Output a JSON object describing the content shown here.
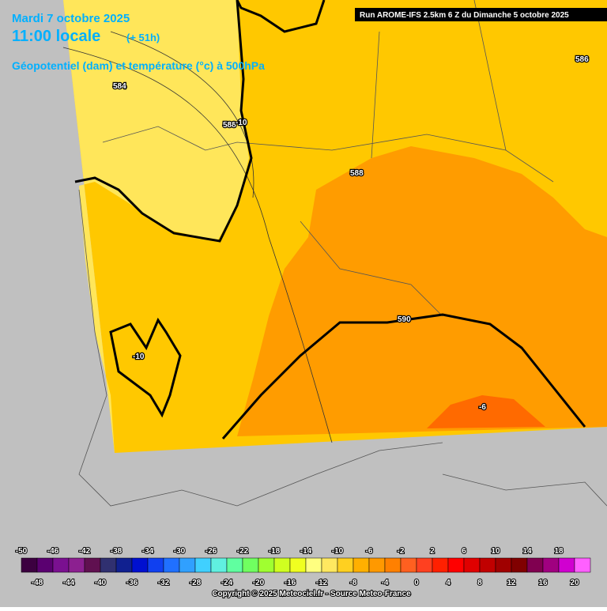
{
  "header": {
    "date": "Mardi 7 octobre 2025",
    "time": "11:00 locale",
    "lead": "(+ 51h)",
    "subtitle": "Géopotentiel (dam) et température (°c) à 500hPa",
    "run_info": "Run AROME-IFS 2.5km 6 Z du Dimanche 5 octobre 2025"
  },
  "contour_labels": [
    "584",
    "588",
    "-10",
    "588",
    "586",
    "590",
    "-10",
    "-6"
  ],
  "colorbar": {
    "colors": [
      "#3c0040",
      "#5a0070",
      "#7a1090",
      "#8c2090",
      "#601050",
      "#303070",
      "#102090",
      "#0010d0",
      "#1040f0",
      "#2070ff",
      "#30a0ff",
      "#40d0ff",
      "#60f0e0",
      "#60ffa0",
      "#70ff60",
      "#a0ff30",
      "#d0ff20",
      "#f0ff20",
      "#ffff80",
      "#ffe860",
      "#ffd020",
      "#ffb000",
      "#ff9900",
      "#ff8000",
      "#ff6020",
      "#ff4020",
      "#ff2000",
      "#ff0000",
      "#e00000",
      "#c00000",
      "#a00000",
      "#800000",
      "#800050",
      "#a00080",
      "#d000d0",
      "#ff60ff"
    ],
    "labels_top": [
      -50,
      -46,
      -42,
      -38,
      -34,
      -30,
      -26,
      -22,
      -18,
      -14,
      -10,
      -6,
      -2,
      2,
      6,
      10,
      14,
      18
    ],
    "labels_bottom": [
      -48,
      -44,
      -40,
      -36,
      -32,
      -28,
      -24,
      -20,
      -16,
      -12,
      -8,
      -4,
      0,
      4,
      8,
      12,
      16,
      20
    ]
  },
  "copyright": "Copyright © 2025 Meteociel.fr - Source Meteo-France"
}
